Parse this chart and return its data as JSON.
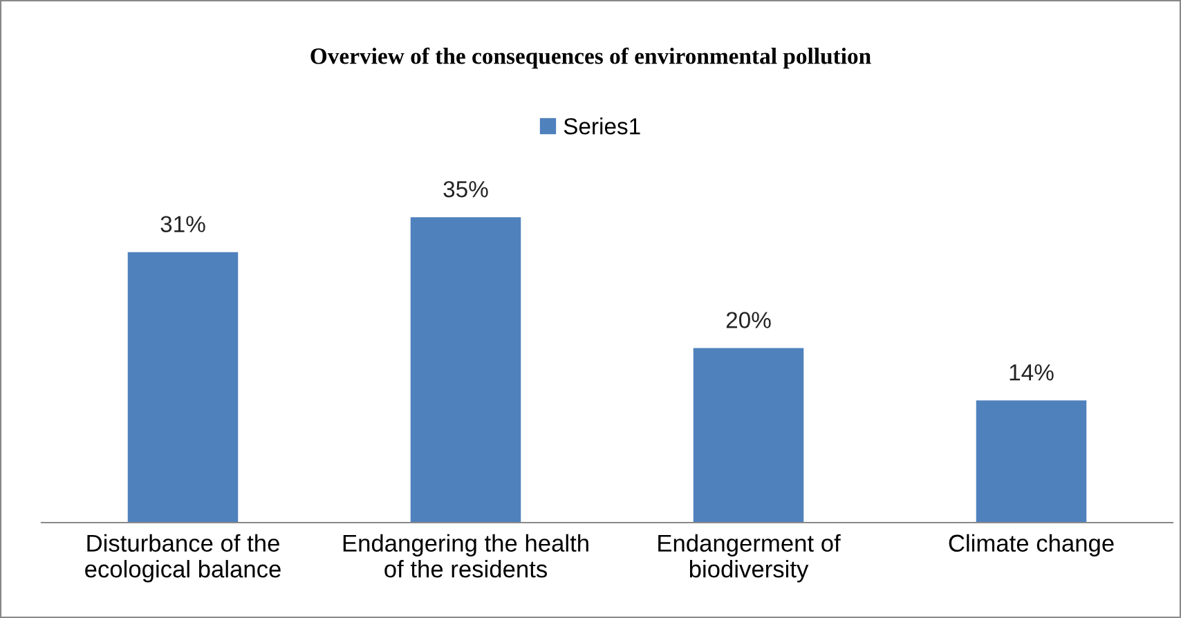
{
  "chart_data": {
    "type": "bar",
    "title": "Overview of the consequences of environmental pollution",
    "categories": [
      "Disturbance of the\necological balance",
      "Endangering the health\nof the residents",
      "Endangerment of\nbiodiversity",
      "Climate change"
    ],
    "series": [
      {
        "name": "Series1",
        "color": "#4f81bd",
        "values": [
          31,
          35,
          20,
          14
        ],
        "value_labels": [
          "31%",
          "35%",
          "20%",
          "14%"
        ]
      }
    ],
    "legend": "top",
    "grid": false
  }
}
